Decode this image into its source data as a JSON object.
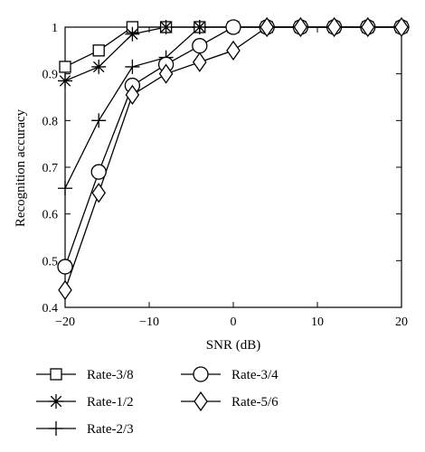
{
  "chart_data": {
    "type": "line",
    "title": "",
    "xlabel": "SNR (dB)",
    "ylabel": "Recognition accuracy",
    "xlim": [
      -20,
      20
    ],
    "ylim": [
      0.4,
      1.0
    ],
    "xticks": [
      -20,
      -10,
      0,
      10,
      20
    ],
    "yticks": [
      0.4,
      0.5,
      0.6,
      0.7,
      0.8,
      0.9,
      1.0
    ],
    "xtick_labels": [
      "−20",
      "−10",
      "0",
      "10",
      "20"
    ],
    "ytick_labels": [
      "0.4",
      "0.5",
      "0.6",
      "0.7",
      "0.8",
      "0.9",
      "1"
    ],
    "grid": false,
    "legend_placement": "bottom",
    "x": [
      -20,
      -16,
      -12,
      -8,
      -4,
      0,
      4,
      8,
      12,
      16,
      20
    ],
    "series": [
      {
        "name": "Rate-3/8",
        "marker": "square",
        "values": [
          0.915,
          0.95,
          1.0,
          1.0,
          1.0,
          1.0,
          1.0,
          1.0,
          1.0,
          1.0,
          1.0
        ]
      },
      {
        "name": "Rate-1/2",
        "marker": "asterisk",
        "values": [
          0.885,
          0.915,
          0.985,
          1.0,
          1.0,
          1.0,
          1.0,
          1.0,
          1.0,
          1.0,
          1.0
        ]
      },
      {
        "name": "Rate-2/3",
        "marker": "plus",
        "values": [
          0.655,
          0.8,
          0.915,
          0.935,
          1.0,
          1.0,
          1.0,
          1.0,
          1.0,
          1.0,
          1.0
        ]
      },
      {
        "name": "Rate-3/4",
        "marker": "circle",
        "values": [
          0.487,
          0.69,
          0.875,
          0.92,
          0.96,
          1.0,
          1.0,
          1.0,
          1.0,
          1.0,
          1.0
        ]
      },
      {
        "name": "Rate-5/6",
        "marker": "diamond",
        "values": [
          0.437,
          0.645,
          0.855,
          0.9,
          0.925,
          0.95,
          1.0,
          1.0,
          1.0,
          1.0,
          1.0
        ]
      }
    ],
    "colors": {
      "line": "#000000",
      "background": "#ffffff"
    }
  }
}
